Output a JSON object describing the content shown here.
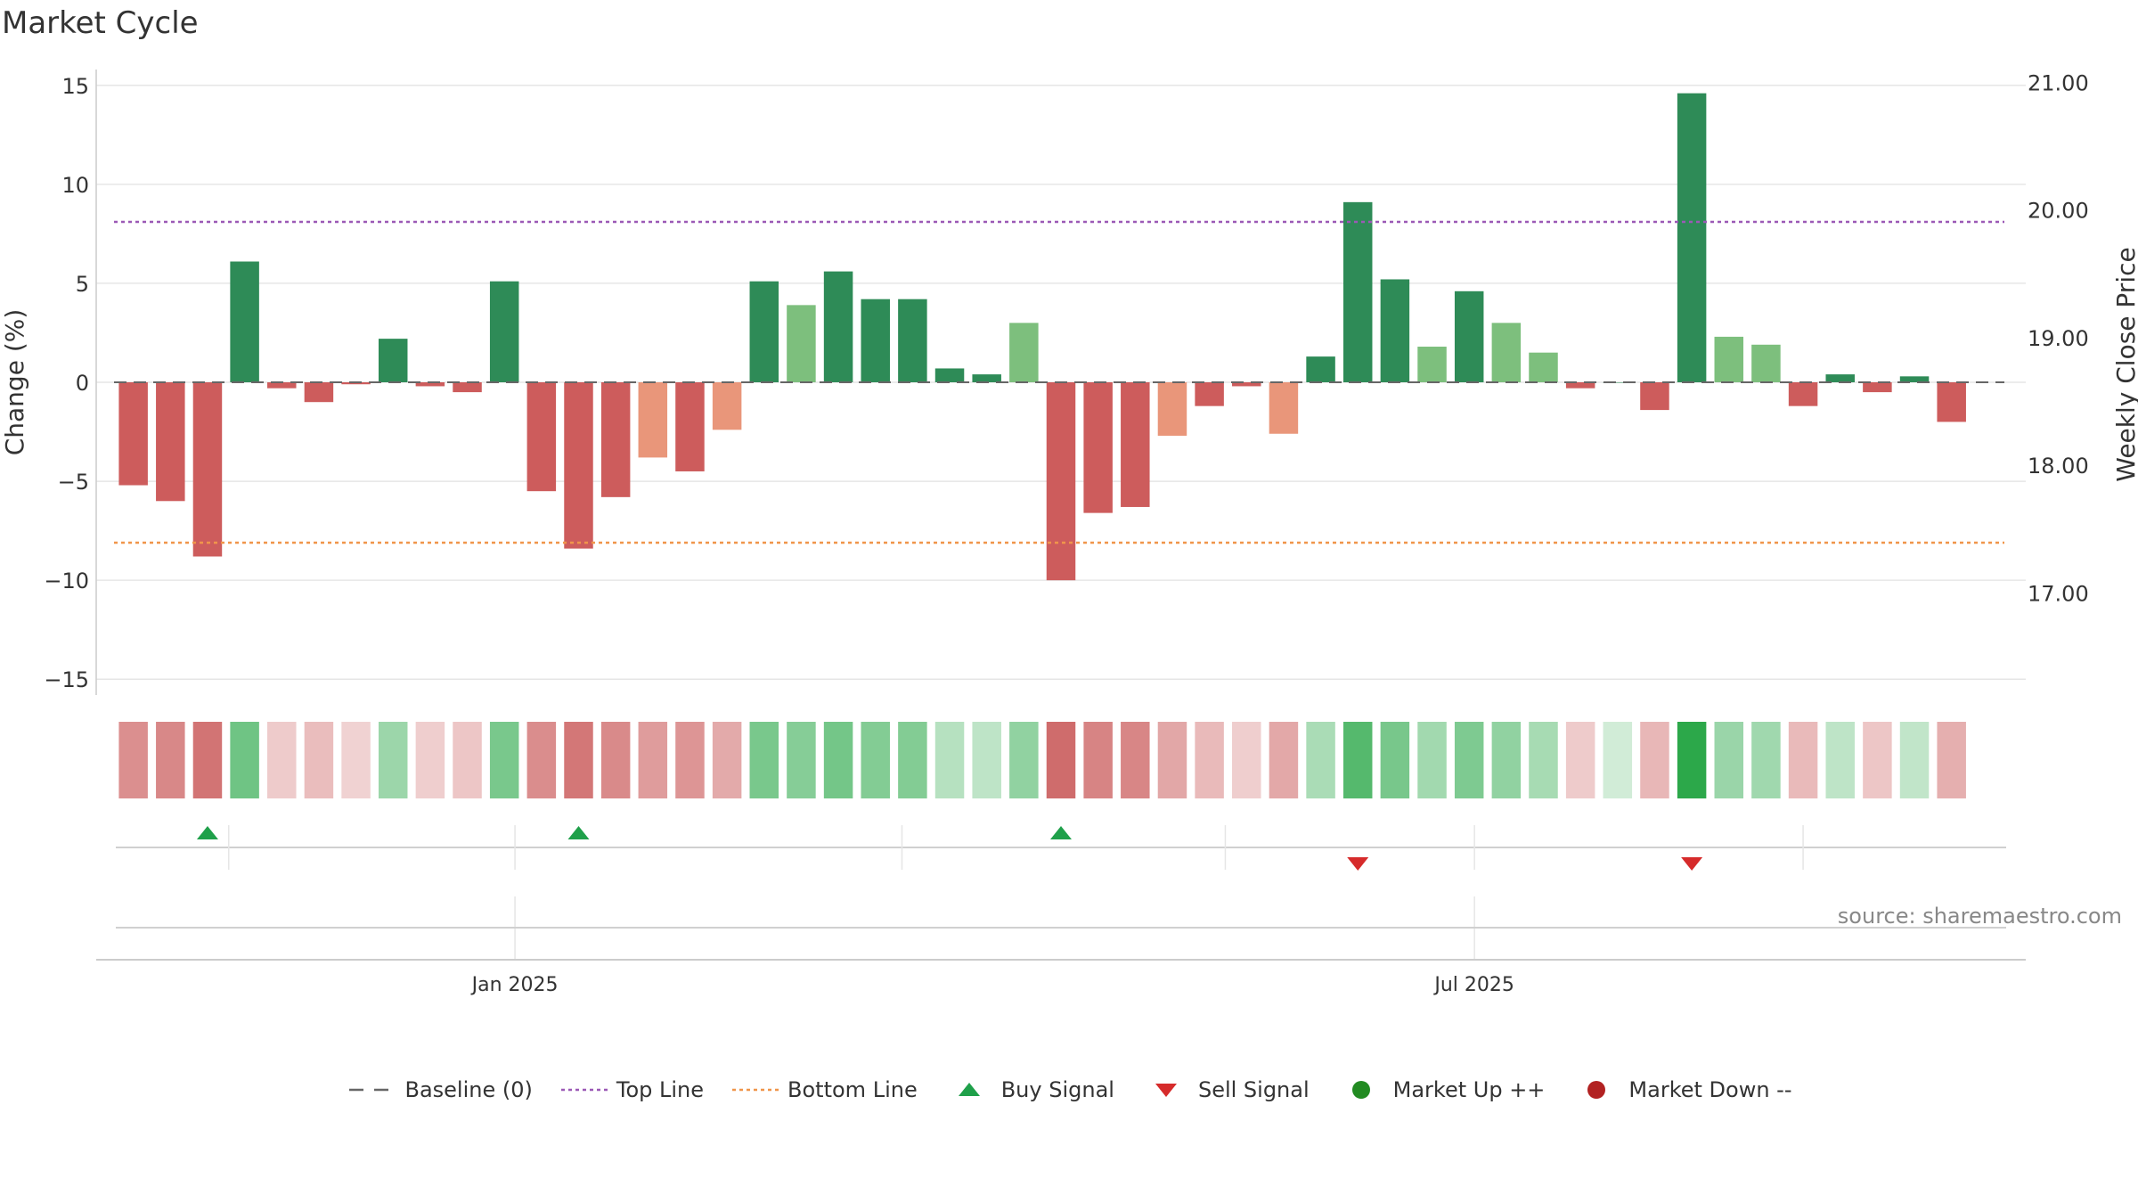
{
  "chart_data": {
    "type": "bar",
    "title": "Market Cycle",
    "ylabel": "Change (%)",
    "y2label": "Weekly Close Price",
    "ylim": [
      -15.8,
      15.8
    ],
    "yticks": [
      15,
      10,
      5,
      0,
      -5,
      -10,
      -15
    ],
    "ytick_labels": [
      "15",
      "10",
      "5",
      "0",
      "−5",
      "−10",
      "−15"
    ],
    "y2lim": [
      16.2,
      21.1
    ],
    "y2ticks": [
      21.0,
      20.0,
      19.0,
      18.0,
      17.0
    ],
    "y2tick_labels": [
      "21.00",
      "20.00",
      "19.00",
      "18.00",
      "17.00"
    ],
    "xlim": [
      "2024-10-14",
      "2025-10-13"
    ],
    "xticks": [
      {
        "date": "2025-01-01",
        "label": "Jan 2025"
      },
      {
        "date": "2025-07-01",
        "label": "Jul 2025"
      }
    ],
    "x": [
      "2024-10-21",
      "2024-10-28",
      "2024-11-04",
      "2024-11-11",
      "2024-11-18",
      "2024-11-25",
      "2024-12-02",
      "2024-12-09",
      "2024-12-16",
      "2024-12-23",
      "2024-12-30",
      "2025-01-06",
      "2025-01-13",
      "2025-01-20",
      "2025-01-27",
      "2025-02-03",
      "2025-02-10",
      "2025-02-17",
      "2025-02-24",
      "2025-03-03",
      "2025-03-10",
      "2025-03-17",
      "2025-03-24",
      "2025-03-31",
      "2025-04-07",
      "2025-04-14",
      "2025-04-21",
      "2025-04-28",
      "2025-05-05",
      "2025-05-12",
      "2025-05-19",
      "2025-05-26",
      "2025-06-02",
      "2025-06-09",
      "2025-06-16",
      "2025-06-23",
      "2025-06-30",
      "2025-07-07",
      "2025-07-14",
      "2025-07-21",
      "2025-07-28",
      "2025-08-04",
      "2025-08-11",
      "2025-08-18",
      "2025-08-25",
      "2025-09-01",
      "2025-09-08",
      "2025-09-15",
      "2025-09-22",
      "2025-09-29"
    ],
    "values": [
      -5.2,
      -6.0,
      -8.8,
      6.1,
      -0.3,
      -1.0,
      -0.1,
      2.2,
      -0.2,
      -0.5,
      5.1,
      -5.5,
      -8.4,
      -5.8,
      -3.8,
      -4.5,
      -2.4,
      5.1,
      3.9,
      5.6,
      4.2,
      4.2,
      0.7,
      0.4,
      3.0,
      -10.0,
      -6.6,
      -6.3,
      -2.7,
      -1.2,
      -0.2,
      -2.6,
      1.3,
      9.1,
      5.2,
      1.8,
      4.6,
      3.0,
      1.5,
      -0.3,
      0.0,
      -1.4,
      14.6,
      2.3,
      1.9,
      -1.2,
      0.4,
      -0.5,
      0.3,
      -2.0
    ],
    "reference_lines": [
      {
        "name": "Baseline (0)",
        "value": 0,
        "color": "#666666",
        "style": "dashed"
      },
      {
        "name": "Top Line",
        "value": 8.1,
        "color": "#9b59b6",
        "style": "dotted"
      },
      {
        "name": "Bottom Line",
        "value": -8.1,
        "color": "#f0954a",
        "style": "dotted"
      }
    ],
    "signals": [
      {
        "name": "Buy Signal",
        "type": "buy",
        "dates": [
          "2024-11-04",
          "2025-01-13",
          "2025-04-14"
        ],
        "color": "#1fa04a"
      },
      {
        "name": "Sell Signal",
        "type": "sell",
        "dates": [
          "2025-06-09",
          "2025-08-11"
        ],
        "color": "#d62b2b"
      }
    ],
    "colors": {
      "up_strong": "#2e8b57",
      "up_weak": "#7dbf7d",
      "down_strong": "#cd5c5c",
      "down_weak": "#e9967a",
      "heat_up": "#2ca84a",
      "heat_down": "#c65050",
      "market_up": "#228b22",
      "market_down": "#b22222"
    },
    "legend": [
      {
        "label": "Baseline (0)",
        "symbol": "dash",
        "color": "#666666"
      },
      {
        "label": "Top Line",
        "symbol": "dot",
        "color": "#9b59b6"
      },
      {
        "label": "Bottom Line",
        "symbol": "dot",
        "color": "#f0954a"
      },
      {
        "label": "Buy Signal",
        "symbol": "triangle-up",
        "color": "#1fa04a"
      },
      {
        "label": "Sell Signal",
        "symbol": "triangle-down",
        "color": "#d62b2b"
      },
      {
        "label": "Market Up ++",
        "symbol": "circle",
        "color": "#228b22"
      },
      {
        "label": "Market Down --",
        "symbol": "circle",
        "color": "#b22222"
      }
    ],
    "legend_position": "bottom",
    "grid": true,
    "source": "source: sharemaestro.com"
  }
}
